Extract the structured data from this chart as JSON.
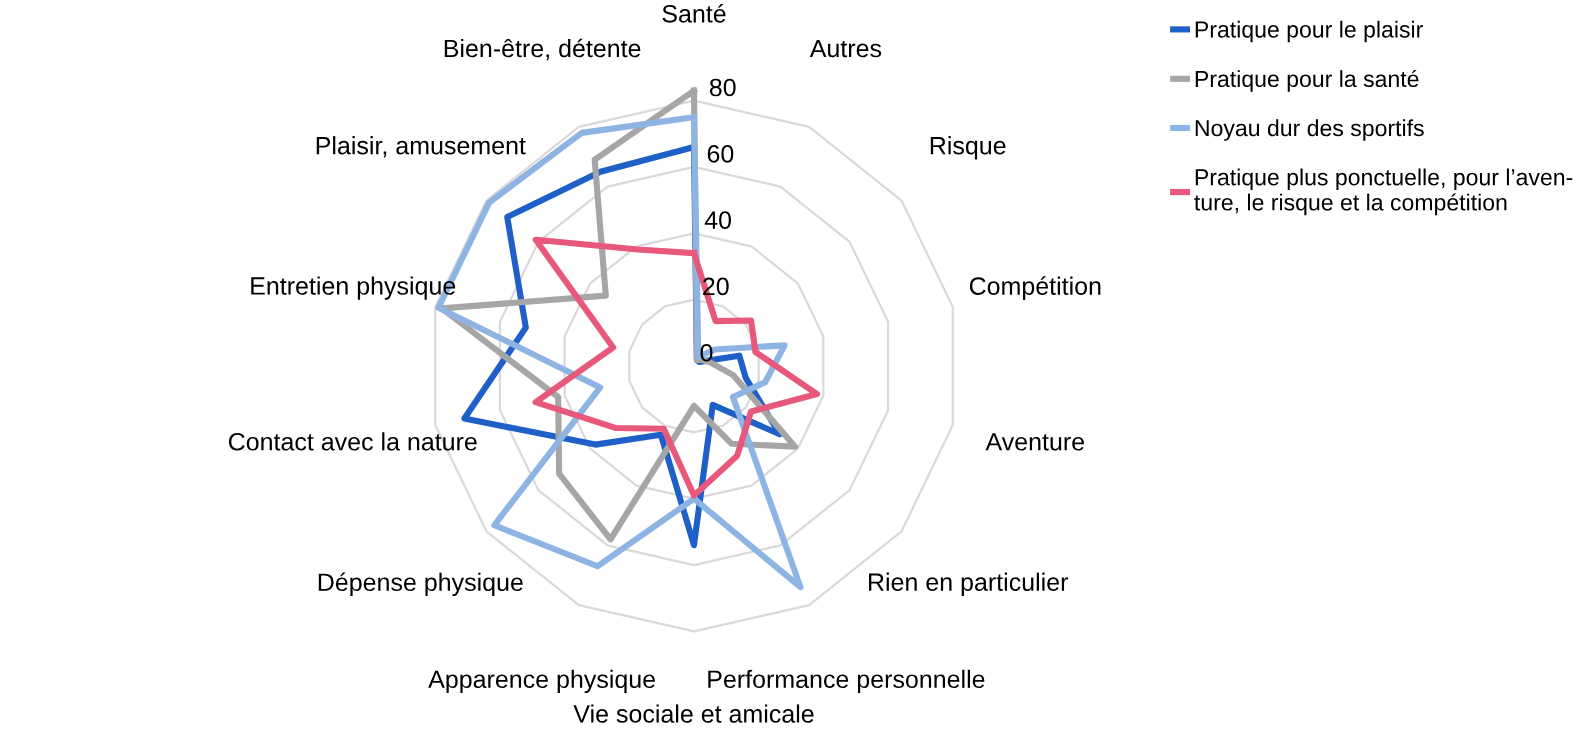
{
  "chart_data": {
    "type": "radar",
    "categories": [
      "Santé",
      "Autres",
      "Risque",
      "Compétition",
      "Aventure",
      "Rien en particulier",
      "Performance personnelle",
      "Vie sociale et amicale",
      "Apparence physique",
      "Dépense physique",
      "Contact avec la nature",
      "Entretien physique",
      "Plaisir, amusement",
      "Bien-être, détente"
    ],
    "ylim": [
      0,
      85
    ],
    "yticks": [
      0,
      20,
      40,
      60,
      80
    ],
    "grid": true,
    "legend": "top right",
    "line_style": "solid",
    "marker": "none",
    "series": [
      {
        "name": "Pratique pour le plaisir",
        "color": "#1f5fc8",
        "values": [
          66,
          2,
          2,
          14,
          16,
          33,
          13,
          54,
          23,
          38,
          71,
          52,
          72,
          65
        ]
      },
      {
        "name": "Pratique pour la santé",
        "color": "#a6a6a6",
        "values": [
          83,
          2,
          3,
          5,
          12,
          39,
          26,
          12,
          58,
          52,
          42,
          78,
          34,
          69
        ]
      },
      {
        "name": "Noyau dur des sportifs",
        "color": "#8eb4e3",
        "values": [
          75,
          3,
          8,
          28,
          22,
          15,
          74,
          40,
          67,
          77,
          29,
          79,
          79,
          78
        ]
      },
      {
        "name": "Pratique plus ponctuelle, pour l’aven-\nture, le risque et la compétition",
        "color": "#e8587a",
        "values": [
          34,
          15,
          22,
          19,
          38,
          22,
          30,
          39,
          21,
          30,
          49,
          25,
          61,
          39
        ]
      }
    ]
  }
}
